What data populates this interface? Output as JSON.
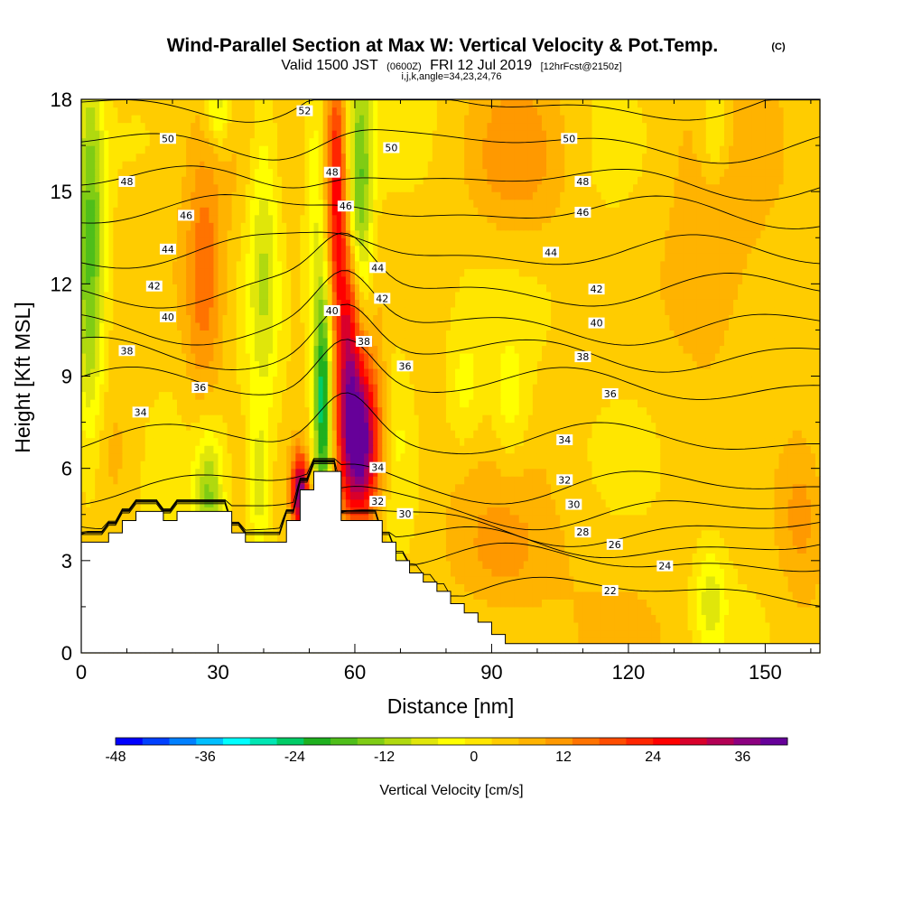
{
  "chart_data": {
    "type": "heatmap",
    "title": {
      "main": "Wind-Parallel Section at Max W: Vertical Velocity & Pot.Temp.",
      "mark": "(C)",
      "line2_a": "Valid 1500 JST",
      "line2_b": "(0600Z)",
      "line2_c": "FRI 12 Jul 2019",
      "line2_d": "[12hrFcst@2150z]",
      "line3": "i,j,k,angle=34,23,24,76"
    },
    "xlabel": "Distance [nm]",
    "ylabel": "Height [Kft MSL]",
    "xlim": [
      0,
      162
    ],
    "ylim": [
      0,
      18
    ],
    "x_ticks": [
      0,
      30,
      60,
      90,
      120,
      150
    ],
    "y_ticks": [
      0,
      3,
      6,
      9,
      12,
      15,
      18
    ],
    "colorbar": {
      "title": "Vertical Velocity [cm/s]",
      "min": -48,
      "max": 42,
      "step": 3,
      "tick_values": [
        -48,
        -36,
        -24,
        -12,
        0,
        12,
        24,
        36
      ],
      "tick_labels": [
        "-48",
        "-36",
        "-24",
        "-12",
        "0",
        "12",
        "24",
        "36"
      ],
      "colors": [
        "#0000ff",
        "#0040ff",
        "#0080ff",
        "#00bfff",
        "#00ffff",
        "#00e6b3",
        "#00cc66",
        "#1fb01f",
        "#4fbe1a",
        "#7fcc14",
        "#b0d90f",
        "#e0e60a",
        "#ffff00",
        "#ffe600",
        "#ffcc00",
        "#ffb300",
        "#ff9900",
        "#ff7300",
        "#ff4d00",
        "#ff2600",
        "#ff0000",
        "#d9002b",
        "#b30055",
        "#8c0080",
        "#660099"
      ],
      "note": "color index = round(w/3), w in cm/s"
    },
    "vertical_velocity_features": [
      {
        "type": "updraft",
        "x": 61,
        "y": 6.8,
        "w": 42,
        "sx": 3.2,
        "sy": 1.9
      },
      {
        "type": "updraft",
        "x": 59,
        "y": 10.5,
        "w": 24,
        "sx": 2.2,
        "sy": 2.4
      },
      {
        "type": "updraft",
        "x": 56,
        "y": 15.5,
        "w": 22,
        "sx": 1.6,
        "sy": 2.8
      },
      {
        "type": "updraft",
        "x": 48,
        "y": 5.2,
        "w": 34,
        "sx": 1.4,
        "sy": 0.9
      },
      {
        "type": "updraft",
        "x": 27,
        "y": 12.0,
        "w": 12,
        "sx": 3.0,
        "sy": 3.0
      },
      {
        "type": "updraft",
        "x": 7,
        "y": 6.5,
        "w": 6,
        "sx": 5.0,
        "sy": 2.0
      },
      {
        "type": "updraft",
        "x": 96,
        "y": 16.0,
        "w": 9,
        "sx": 8.0,
        "sy": 2.0
      },
      {
        "type": "updraft",
        "x": 138,
        "y": 12.0,
        "w": 7,
        "sx": 8.0,
        "sy": 3.0
      },
      {
        "type": "updraft",
        "x": 158,
        "y": 4.5,
        "w": 9,
        "sx": 4.0,
        "sy": 2.0
      },
      {
        "type": "updraft",
        "x": 92,
        "y": 3.0,
        "w": 6,
        "sx": 8.0,
        "sy": 1.5
      },
      {
        "type": "downdraft",
        "x": 53,
        "y": 8.2,
        "w": -30,
        "sx": 1.4,
        "sy": 3.0
      },
      {
        "type": "downdraft",
        "x": 61,
        "y": 14.0,
        "w": -22,
        "sx": 2.0,
        "sy": 3.5
      },
      {
        "type": "downdraft",
        "x": 51,
        "y": 14.5,
        "w": -8,
        "sx": 1.6,
        "sy": 3.0
      },
      {
        "type": "downdraft",
        "x": 2,
        "y": 13.5,
        "w": -20,
        "sx": 2.2,
        "sy": 4.5
      },
      {
        "type": "downdraft",
        "x": 28,
        "y": 5.2,
        "w": -16,
        "sx": 2.3,
        "sy": 1.6
      },
      {
        "type": "downdraft",
        "x": 40,
        "y": 13.0,
        "w": -12,
        "sx": 2.5,
        "sy": 4.0
      },
      {
        "type": "downdraft",
        "x": 39,
        "y": 5.5,
        "w": -10,
        "sx": 1.5,
        "sy": 1.5
      },
      {
        "type": "downdraft",
        "x": 30,
        "y": 17.8,
        "w": -12,
        "sx": 2.0,
        "sy": 1.0
      },
      {
        "type": "downdraft",
        "x": 84,
        "y": 8.5,
        "w": -7,
        "sx": 3.0,
        "sy": 1.5
      },
      {
        "type": "downdraft",
        "x": 94,
        "y": 8.0,
        "w": -8,
        "sx": 3.0,
        "sy": 1.5
      },
      {
        "type": "downdraft",
        "x": 138,
        "y": 1.7,
        "w": -10,
        "sx": 2.5,
        "sy": 1.3
      },
      {
        "type": "downdraft",
        "x": 139,
        "y": 17.0,
        "w": -9,
        "sx": 2.5,
        "sy": 1.2
      },
      {
        "type": "downdraft",
        "x": 69,
        "y": 8.0,
        "w": -6,
        "sx": 3.0,
        "sy": 2.5
      }
    ],
    "terrain_profile": {
      "x": [
        0,
        3,
        6,
        9,
        12,
        18,
        21,
        24,
        30,
        33,
        36,
        42,
        45,
        48,
        51,
        54,
        57,
        60,
        63,
        66,
        69,
        72,
        75,
        78,
        81,
        84,
        87,
        90,
        93,
        162
      ],
      "height": [
        3.6,
        3.6,
        3.9,
        4.3,
        4.6,
        4.3,
        4.6,
        4.6,
        4.6,
        3.9,
        3.6,
        3.6,
        4.3,
        5.3,
        5.9,
        5.9,
        4.3,
        4.3,
        4.3,
        3.6,
        3.0,
        2.6,
        2.3,
        2.0,
        1.6,
        1.3,
        1.0,
        0.6,
        0.3,
        0.3
      ]
    },
    "theta_contours": {
      "levels": [
        22,
        24,
        26,
        28,
        30,
        32,
        34,
        36,
        38,
        40,
        42,
        44,
        46,
        48,
        50,
        52
      ],
      "base_heights_kft": [
        2.0,
        3.0,
        3.5,
        4.0,
        4.6,
        5.4,
        6.9,
        8.7,
        9.7,
        10.6,
        11.8,
        13.0,
        14.3,
        15.3,
        16.5,
        17.8
      ],
      "labels": [
        {
          "text": "22",
          "x": 116,
          "y": 2.0
        },
        {
          "text": "24",
          "x": 128,
          "y": 2.8
        },
        {
          "text": "26",
          "x": 117,
          "y": 3.5
        },
        {
          "text": "28",
          "x": 110,
          "y": 3.9
        },
        {
          "text": "30",
          "x": 108,
          "y": 4.8
        },
        {
          "text": "30",
          "x": 71,
          "y": 4.5
        },
        {
          "text": "32",
          "x": 106,
          "y": 5.6
        },
        {
          "text": "32",
          "x": 65,
          "y": 4.9
        },
        {
          "text": "34",
          "x": 106,
          "y": 6.9
        },
        {
          "text": "34",
          "x": 65,
          "y": 6.0
        },
        {
          "text": "34",
          "x": 13,
          "y": 7.8
        },
        {
          "text": "36",
          "x": 116,
          "y": 8.4
        },
        {
          "text": "36",
          "x": 71,
          "y": 9.3
        },
        {
          "text": "36",
          "x": 26,
          "y": 8.6
        },
        {
          "text": "38",
          "x": 110,
          "y": 9.6
        },
        {
          "text": "38",
          "x": 62,
          "y": 10.1
        },
        {
          "text": "38",
          "x": 10,
          "y": 9.8
        },
        {
          "text": "40",
          "x": 113,
          "y": 10.7
        },
        {
          "text": "40",
          "x": 55,
          "y": 11.1
        },
        {
          "text": "40",
          "x": 19,
          "y": 10.9
        },
        {
          "text": "42",
          "x": 113,
          "y": 11.8
        },
        {
          "text": "42",
          "x": 66,
          "y": 11.5
        },
        {
          "text": "42",
          "x": 16,
          "y": 11.9
        },
        {
          "text": "44",
          "x": 103,
          "y": 13.0
        },
        {
          "text": "44",
          "x": 65,
          "y": 12.5
        },
        {
          "text": "44",
          "x": 19,
          "y": 13.1
        },
        {
          "text": "46",
          "x": 110,
          "y": 14.3
        },
        {
          "text": "46",
          "x": 58,
          "y": 14.5
        },
        {
          "text": "46",
          "x": 23,
          "y": 14.2
        },
        {
          "text": "48",
          "x": 110,
          "y": 15.3
        },
        {
          "text": "48",
          "x": 55,
          "y": 15.6
        },
        {
          "text": "48",
          "x": 10,
          "y": 15.3
        },
        {
          "text": "50",
          "x": 107,
          "y": 16.7
        },
        {
          "text": "50",
          "x": 68,
          "y": 16.4
        },
        {
          "text": "50",
          "x": 19,
          "y": 16.7
        },
        {
          "text": "52",
          "x": 49,
          "y": 17.6
        }
      ]
    }
  }
}
